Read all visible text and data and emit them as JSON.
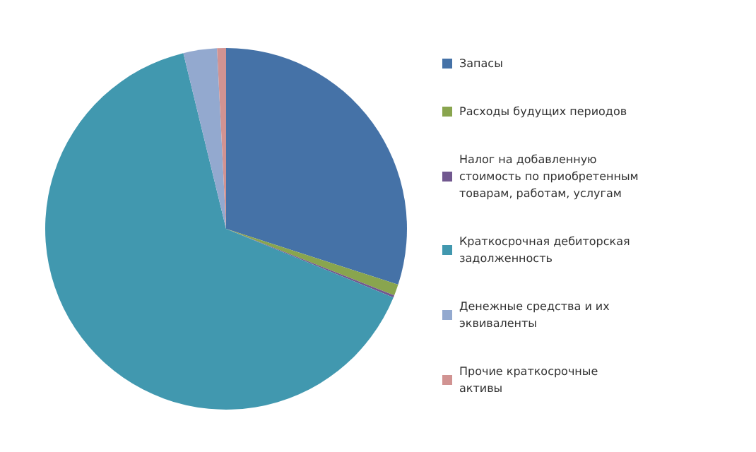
{
  "chart_data": {
    "type": "pie",
    "categories": [
      "Запасы",
      "Расходы будущих периодов",
      "Налог на добавленную стоимость по приобретенным товарам, работам, услугам",
      "Краткосрочная дебиторская задолженность",
      "Денежные средства и их эквиваленты",
      "Прочие краткосрочные активы"
    ],
    "values": [
      30,
      1,
      0.2,
      65,
      3,
      0.8
    ],
    "colors": [
      "#4572a7",
      "#89a54e",
      "#71588f",
      "#4198af",
      "#93a9cf",
      "#d19392"
    ],
    "legend": "right"
  }
}
